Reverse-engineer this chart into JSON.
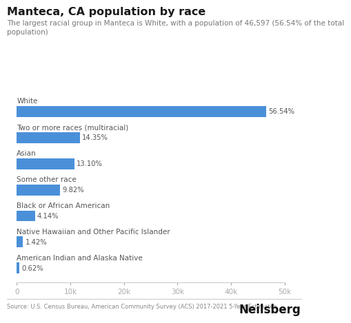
{
  "title": "Manteca, CA population by race",
  "subtitle": "The largest racial group in Manteca is White, with a population of 46,597 (56.54% of the total\npopulation)",
  "categories": [
    "White",
    "Two or more races (multiracial)",
    "Asian",
    "Some other race",
    "Black or African American",
    "Native Hawaiian and Other Pacific Islander",
    "American Indian and Alaska Native"
  ],
  "values": [
    46597,
    11810,
    10783,
    8083,
    3408,
    1169,
    510
  ],
  "percentages": [
    "56.54%",
    "14.35%",
    "13.10%",
    "9.82%",
    "4.14%",
    "1.42%",
    "0.62%"
  ],
  "bar_color": "#4a90d9",
  "xlim": [
    0,
    50000
  ],
  "xticks": [
    0,
    10000,
    20000,
    30000,
    40000,
    50000
  ],
  "xtick_labels": [
    "0",
    "10k",
    "20k",
    "30k",
    "40k",
    "50k"
  ],
  "source": "Source: U.S. Census Bureau, American Community Survey (ACS) 2017-2021 5-Year Estimates",
  "brand": "Neilsberg",
  "background_color": "#ffffff",
  "title_fontsize": 11.5,
  "subtitle_fontsize": 7.5,
  "label_fontsize": 7.5,
  "pct_fontsize": 7.2,
  "tick_fontsize": 7.5,
  "source_fontsize": 6.0,
  "brand_fontsize": 12
}
